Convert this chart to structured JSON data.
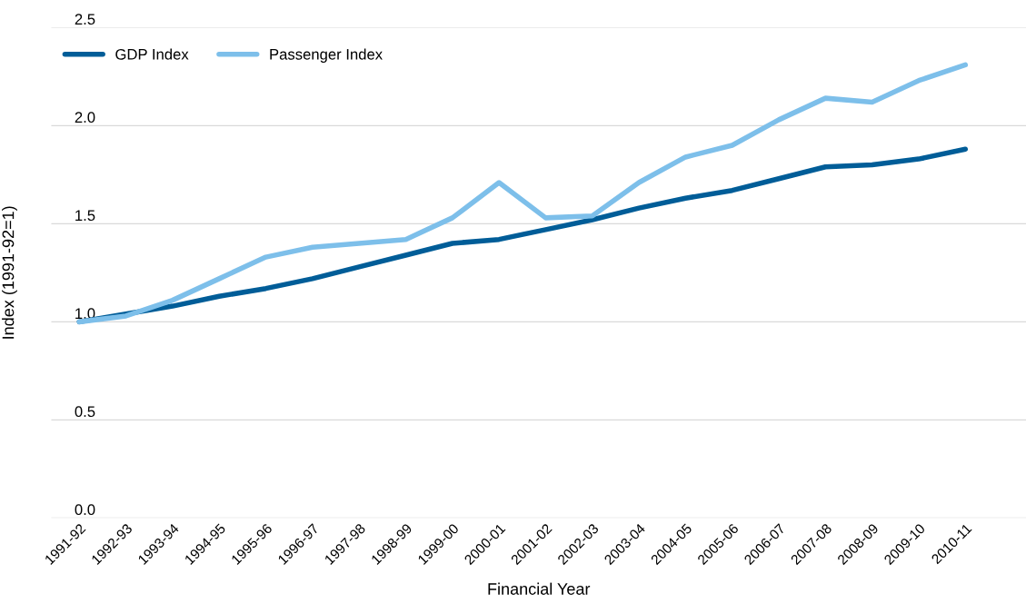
{
  "chart_data": {
    "type": "line",
    "xlabel": "Financial Year",
    "ylabel": "Index (1991-92=1)",
    "categories": [
      "1991-92",
      "1992-93",
      "1993-94",
      "1994-95",
      "1995-96",
      "1996-97",
      "1997-98",
      "1998-99",
      "1999-00",
      "2000-01",
      "2001-02",
      "2002-03",
      "2003-04",
      "2004-05",
      "2005-06",
      "2006-07",
      "2007-08",
      "2008-09",
      "2009-10",
      "2010-11"
    ],
    "series": [
      {
        "name": "GDP Index",
        "color": "#005d98",
        "values": [
          1.0,
          1.04,
          1.08,
          1.13,
          1.17,
          1.22,
          1.28,
          1.34,
          1.4,
          1.42,
          1.47,
          1.52,
          1.58,
          1.63,
          1.67,
          1.73,
          1.79,
          1.8,
          1.83,
          1.88
        ]
      },
      {
        "name": "Passenger Index",
        "color": "#7dbfea",
        "values": [
          1.0,
          1.03,
          1.11,
          1.22,
          1.33,
          1.38,
          1.4,
          1.42,
          1.53,
          1.71,
          1.53,
          1.54,
          1.71,
          1.84,
          1.9,
          2.03,
          2.14,
          2.12,
          2.23,
          2.31
        ]
      }
    ],
    "ylim": [
      0,
      2.5
    ],
    "yticks": [
      {
        "value": 0,
        "label": "0.0"
      },
      {
        "value": 0.5,
        "label": "0.5"
      },
      {
        "value": 1,
        "label": "1.0"
      },
      {
        "value": 1.5,
        "label": "1.5"
      },
      {
        "value": 2,
        "label": "2.0"
      },
      {
        "value": 2.5,
        "label": "2.5"
      }
    ],
    "grid": "y",
    "legend": "top left",
    "marker": "none",
    "line_style": "solid"
  }
}
